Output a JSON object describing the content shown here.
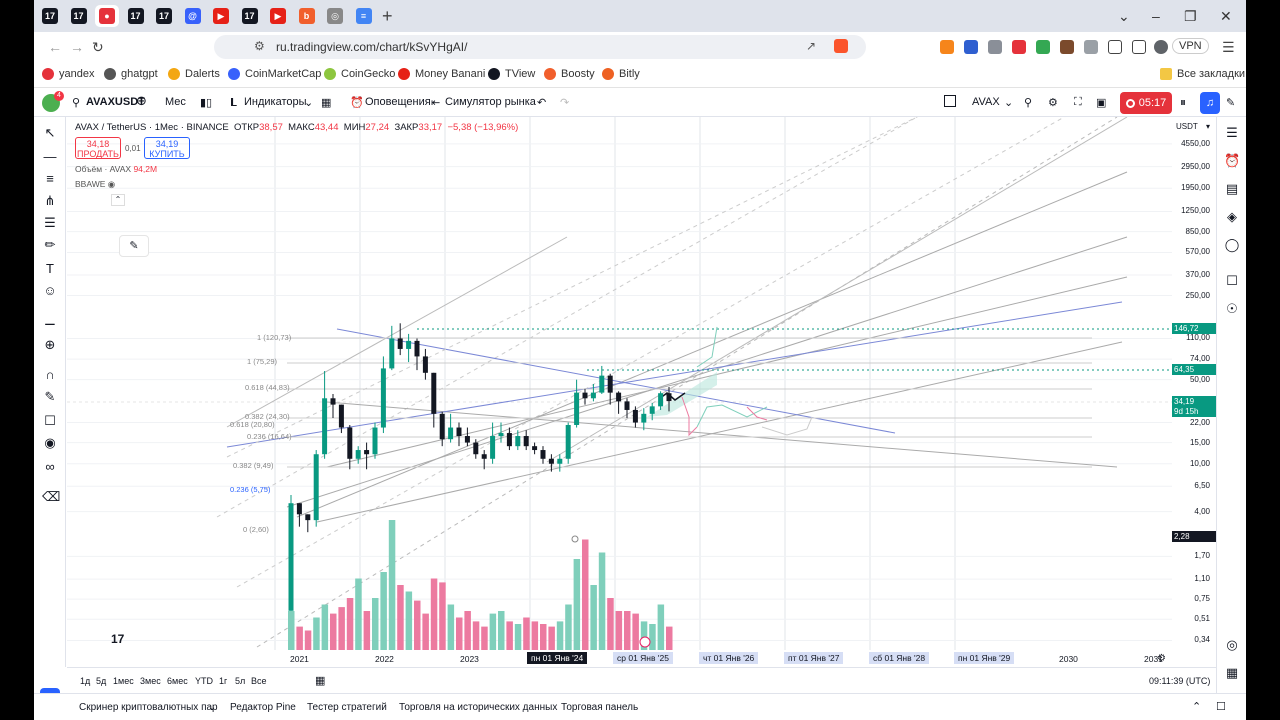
{
  "browser": {
    "tabs": [
      {
        "icon": "tradingview-icon",
        "color": "#131722",
        "letter": "17"
      },
      {
        "icon": "tradingview-icon",
        "color": "#131722",
        "letter": "17"
      },
      {
        "icon": "record-icon",
        "color": "#e5323b",
        "letter": "●"
      },
      {
        "icon": "tradingview-icon",
        "color": "#131722",
        "letter": "17"
      },
      {
        "icon": "tradingview-icon",
        "color": "#131722",
        "letter": "17"
      },
      {
        "icon": "coinmarketcap-icon",
        "color": "#3861fb",
        "letter": "@"
      },
      {
        "icon": "youtube-icon",
        "color": "#e62117",
        "letter": "▶"
      },
      {
        "icon": "tradingview-icon",
        "color": "#131722",
        "letter": "17"
      },
      {
        "icon": "youtube-icon",
        "color": "#e62117",
        "letter": "▶"
      },
      {
        "icon": "boosty-icon",
        "color": "#f15f2c",
        "letter": "b"
      },
      {
        "icon": "chrome-icon",
        "color": "#888888",
        "letter": "◎"
      },
      {
        "icon": "docs-icon",
        "color": "#4285f4",
        "letter": "≡"
      }
    ],
    "new_tab": "+",
    "window_controls": [
      "⌄",
      "–",
      "❐",
      "✕"
    ],
    "url": "ru.tradingview.com/chart/kSvYHgAI/",
    "vpn": "VPN",
    "bookmarks": [
      {
        "label": "yandex",
        "color": "#e5323b"
      },
      {
        "label": "ghatgpt",
        "color": "#555555"
      },
      {
        "label": "Dalerts",
        "color": "#f3a712"
      },
      {
        "label": "CoinMarketCap",
        "color": "#3861fb"
      },
      {
        "label": "CoinGecko",
        "color": "#8dc63f"
      },
      {
        "label": "Money Banani",
        "color": "#e62117"
      },
      {
        "label": "TView",
        "color": "#131722"
      },
      {
        "label": "Boosty",
        "color": "#f15f2c"
      },
      {
        "label": "Bitly",
        "color": "#ee6123"
      }
    ],
    "all_bookmarks": "Все закладки"
  },
  "toolbar": {
    "avatar_badge": "4",
    "symbol": "AVAXUSDT",
    "interval": "Мес",
    "indicators": "Индикаторы",
    "alerts": "Оповещения",
    "replay": "Симулятор рынка",
    "compare_symbol": "AVAX",
    "record_time": "05:17"
  },
  "legend": {
    "title": "AVAX / TetherUS · 1Мес · BINANCE",
    "open_label": "ОТКР",
    "open": "38,57",
    "high_label": "МАКС",
    "high": "43,44",
    "low_label": "МИН",
    "low": "27,24",
    "close_label": "ЗАКР",
    "close": "33,17",
    "change": "−5,38 (−13,96%)",
    "sell_price": "34,18",
    "sell_label": "ПРОДАТЬ",
    "spread": "0,01",
    "buy_price": "34,19",
    "buy_label": "КУПИТЬ",
    "volume_label": "Объём · AVAX",
    "volume_value": "94,2M",
    "bbawe": "BBAWE"
  },
  "fib_labels": [
    "1 (120,73)",
    "1 (75,29)",
    "0.618 (44,83)",
    "0.382 (24,30)",
    "0.618 (20,80)",
    "0.236 (16,64)",
    "0.382 (9,49)",
    "0.236 (5,75)",
    "0 (2,60)"
  ],
  "price_axis": {
    "currency": "USDT",
    "ticks": [
      "4550,00",
      "2950,00",
      "1950,00",
      "1250,00",
      "850,00",
      "570,00",
      "370,00",
      "250,00",
      "110,00",
      "74,00",
      "50,00",
      "22,00",
      "15,00",
      "10,00",
      "6,50",
      "4,00",
      "1,70",
      "1,10",
      "0,75",
      "0,51",
      "0,34"
    ],
    "label_high": "146,72",
    "label_mid": "64,35",
    "label_last": "34,19",
    "label_countdown": "9d 15h",
    "label_low": "2,28"
  },
  "time_axis": [
    "2021",
    "2022",
    "2023",
    "пн 01 Янв '24",
    "ср 01 Янв '25",
    "чт 01 Янв '26",
    "пт 01 Янв '27",
    "сб 01 Янв '28",
    "пн 01 Янв '29",
    "2030",
    "2031"
  ],
  "ranges": [
    "1д",
    "5д",
    "1мес",
    "3мес",
    "6мес",
    "YTD",
    "1г",
    "5л",
    "Все"
  ],
  "clock": "09:11:39 (UTC)",
  "panels": [
    "Скринер криптовалютных пар",
    "Редактор Pine",
    "Тестер стратегий",
    "Торговля на исторических данных",
    "Торговая панель"
  ],
  "colors": {
    "up": "#089981",
    "down": "#f23645",
    "vol_up": "#7fcfbb",
    "vol_down": "#ec7aa0",
    "accent": "#2962ff"
  },
  "chart_data": {
    "type": "candlestick",
    "symbol": "AVAX / TetherUS",
    "interval": "1M",
    "candles": [
      {
        "o": 0.6,
        "c": 4.7,
        "h": 5.5,
        "l": 0.6
      },
      {
        "o": 4.7,
        "c": 3.8,
        "h": 4.7,
        "l": 3.0
      },
      {
        "o": 3.8,
        "c": 3.4,
        "h": 3.8,
        "l": 2.7
      },
      {
        "o": 3.4,
        "c": 12.0,
        "h": 13.0,
        "l": 3.0
      },
      {
        "o": 12.0,
        "c": 35.0,
        "h": 59.0,
        "l": 11.0
      },
      {
        "o": 35.0,
        "c": 31.0,
        "h": 38.0,
        "l": 24.0
      },
      {
        "o": 31.0,
        "c": 20.0,
        "h": 31.0,
        "l": 18.0
      },
      {
        "o": 20.0,
        "c": 11.0,
        "h": 21.0,
        "l": 9.0
      },
      {
        "o": 11.0,
        "c": 13.0,
        "h": 14.0,
        "l": 10.0
      },
      {
        "o": 13.0,
        "c": 12.0,
        "h": 15.0,
        "l": 9.0
      },
      {
        "o": 12.0,
        "c": 20.0,
        "h": 22.0,
        "l": 11.0
      },
      {
        "o": 20.0,
        "c": 62.0,
        "h": 78.0,
        "l": 18.0
      },
      {
        "o": 62.0,
        "c": 110.0,
        "h": 140.0,
        "l": 60.0
      },
      {
        "o": 110.0,
        "c": 90.0,
        "h": 147.0,
        "l": 80.0
      },
      {
        "o": 90.0,
        "c": 105.0,
        "h": 120.0,
        "l": 70.0
      },
      {
        "o": 105.0,
        "c": 78.0,
        "h": 110.0,
        "l": 60.0
      },
      {
        "o": 78.0,
        "c": 57.0,
        "h": 90.0,
        "l": 50.0
      },
      {
        "o": 57.0,
        "c": 26.0,
        "h": 57.0,
        "l": 20.0
      },
      {
        "o": 26.0,
        "c": 16.0,
        "h": 27.0,
        "l": 14.0
      },
      {
        "o": 16.0,
        "c": 20.0,
        "h": 26.0,
        "l": 15.0
      },
      {
        "o": 20.0,
        "c": 17.0,
        "h": 22.0,
        "l": 14.0
      },
      {
        "o": 17.0,
        "c": 15.0,
        "h": 20.0,
        "l": 14.0
      },
      {
        "o": 15.0,
        "c": 12.0,
        "h": 16.0,
        "l": 11.0
      },
      {
        "o": 12.0,
        "c": 11.0,
        "h": 13.0,
        "l": 9.0
      },
      {
        "o": 11.0,
        "c": 17.0,
        "h": 22.0,
        "l": 10.0
      },
      {
        "o": 17.0,
        "c": 18.0,
        "h": 22.0,
        "l": 15.0
      },
      {
        "o": 18.0,
        "c": 14.0,
        "h": 20.0,
        "l": 13.0
      },
      {
        "o": 14.0,
        "c": 17.0,
        "h": 19.0,
        "l": 13.0
      },
      {
        "o": 17.0,
        "c": 14.0,
        "h": 19.0,
        "l": 13.0
      },
      {
        "o": 14.0,
        "c": 13.0,
        "h": 15.0,
        "l": 12.0
      },
      {
        "o": 13.0,
        "c": 11.0,
        "h": 14.0,
        "l": 10.0
      },
      {
        "o": 11.0,
        "c": 10.0,
        "h": 12.0,
        "l": 8.6
      },
      {
        "o": 10.0,
        "c": 11.0,
        "h": 12.0,
        "l": 8.6
      },
      {
        "o": 11.0,
        "c": 21.0,
        "h": 22.0,
        "l": 10.0
      },
      {
        "o": 21.0,
        "c": 39.0,
        "h": 50.0,
        "l": 20.0
      },
      {
        "o": 39.0,
        "c": 35.0,
        "h": 42.0,
        "l": 31.0
      },
      {
        "o": 35.0,
        "c": 39.0,
        "h": 46.0,
        "l": 33.0
      },
      {
        "o": 39.0,
        "c": 54.0,
        "h": 65.0,
        "l": 38.0
      },
      {
        "o": 54.0,
        "c": 39.0,
        "h": 56.0,
        "l": 31.0
      },
      {
        "o": 39.0,
        "c": 33.0,
        "h": 40.0,
        "l": 26.0
      },
      {
        "o": 33.0,
        "c": 28.0,
        "h": 35.0,
        "l": 24.0
      },
      {
        "o": 28.0,
        "c": 22.0,
        "h": 30.0,
        "l": 20.0
      },
      {
        "o": 22.0,
        "c": 26.0,
        "h": 29.0,
        "l": 19.0
      },
      {
        "o": 26.0,
        "c": 30.0,
        "h": 32.0,
        "l": 23.0
      },
      {
        "o": 30.0,
        "c": 38.57,
        "h": 40.0,
        "l": 28.0
      },
      {
        "o": 38.57,
        "c": 33.17,
        "h": 43.44,
        "l": 27.24
      }
    ],
    "volumes": [
      30,
      18,
      15,
      25,
      35,
      28,
      33,
      40,
      55,
      30,
      40,
      60,
      100,
      50,
      45,
      38,
      28,
      55,
      52,
      35,
      25,
      30,
      22,
      18,
      28,
      30,
      22,
      20,
      25,
      22,
      20,
      18,
      22,
      35,
      70,
      85,
      50,
      75,
      40,
      30,
      30,
      28,
      22,
      20,
      35,
      18
    ],
    "ylim": [
      0.3,
      5000
    ],
    "log_scale": true,
    "grid": true,
    "legend_position": "top-left"
  }
}
